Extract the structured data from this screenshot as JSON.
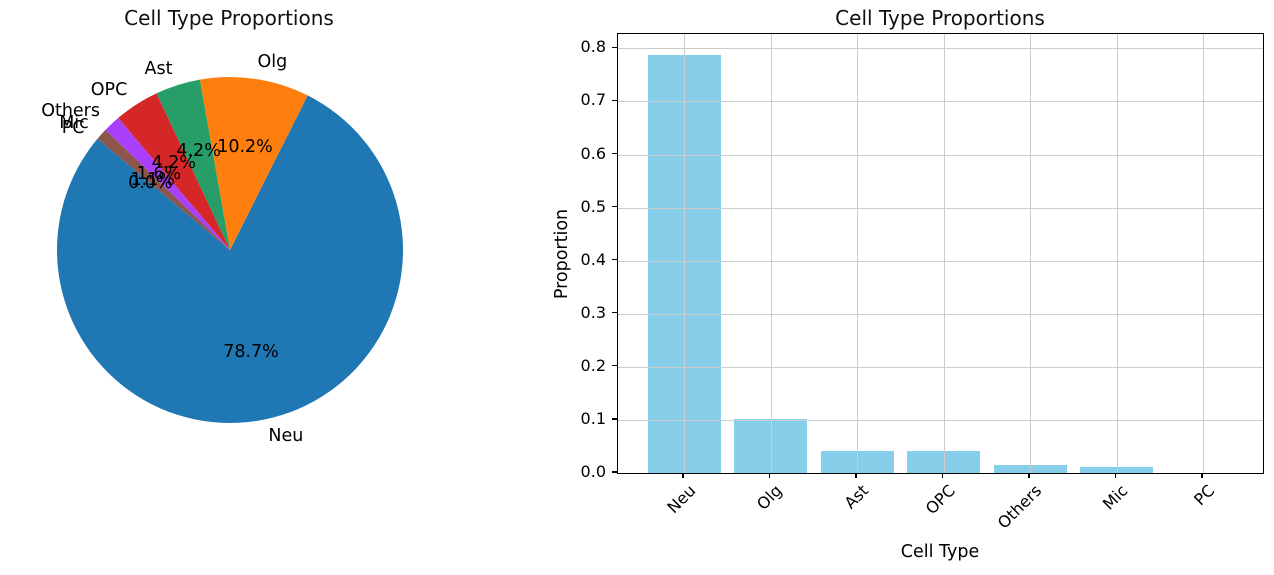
{
  "chart_data": [
    {
      "type": "pie",
      "title": "Cell Type Proportions",
      "labels": [
        "Neu",
        "Olg",
        "Ast",
        "OPC",
        "Others",
        "Mic",
        "PC"
      ],
      "values": [
        0.787,
        0.102,
        0.042,
        0.042,
        0.016,
        0.011,
        0.0
      ],
      "pct_labels": [
        "78.7%",
        "10.2%",
        "4.2%",
        "4.2%",
        "1.6%",
        "1.1%",
        "0.0%"
      ],
      "colors": [
        "#1f77b4",
        "#ff7f0e",
        "#279e68",
        "#d62728",
        "#aa40fc",
        "#8c564b",
        "#e377c2"
      ],
      "startangle": 140,
      "direction": "counterclockwise",
      "legend": "none"
    },
    {
      "type": "bar",
      "title": "Cell Type Proportions",
      "xlabel": "Cell Type",
      "ylabel": "Proportion",
      "categories": [
        "Neu",
        "Olg",
        "Ast",
        "OPC",
        "Others",
        "Mic",
        "PC"
      ],
      "values": [
        0.787,
        0.102,
        0.042,
        0.042,
        0.016,
        0.011,
        0.0
      ],
      "bar_color": "#87ceeb",
      "ylim": [
        0.0,
        0.827
      ],
      "yticks": [
        0.0,
        0.1,
        0.2,
        0.3,
        0.4,
        0.5,
        0.6,
        0.7,
        0.8
      ],
      "grid": true,
      "xtick_rotation": 45,
      "legend": "none"
    }
  ]
}
